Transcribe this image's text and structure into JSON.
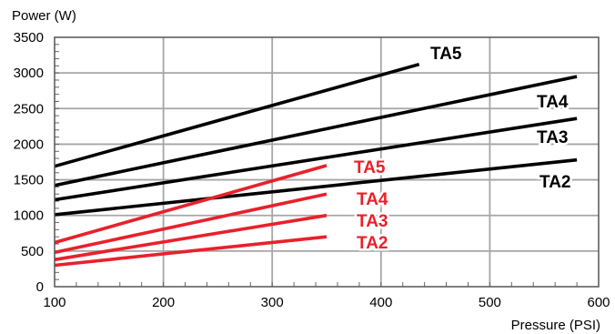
{
  "chart_data": {
    "type": "line",
    "ylabel": "Power (W)",
    "xlabel": "Pressure (PSI)",
    "xlim": [
      100,
      600
    ],
    "ylim": [
      0,
      3500
    ],
    "x_ticks": [
      100,
      200,
      300,
      400,
      500,
      600
    ],
    "y_ticks": [
      0,
      500,
      1000,
      1500,
      2000,
      2500,
      3000,
      3500
    ],
    "grid": true,
    "colors": {
      "black": "#000000",
      "red": "#e8212b",
      "grid": "#a6a6a6"
    },
    "series": [
      {
        "name": "TA5",
        "color": "#000000",
        "x": [
          100,
          435
        ],
        "y": [
          1690,
          3120
        ]
      },
      {
        "name": "TA4",
        "color": "#000000",
        "x": [
          100,
          580
        ],
        "y": [
          1420,
          2950
        ]
      },
      {
        "name": "TA3",
        "color": "#000000",
        "x": [
          100,
          580
        ],
        "y": [
          1220,
          2360
        ]
      },
      {
        "name": "TA2",
        "color": "#000000",
        "x": [
          100,
          580
        ],
        "y": [
          1010,
          1780
        ]
      },
      {
        "name": "TA5",
        "color": "#e8212b",
        "x": [
          100,
          350
        ],
        "y": [
          620,
          1700
        ]
      },
      {
        "name": "TA4",
        "color": "#e8212b",
        "x": [
          100,
          350
        ],
        "y": [
          480,
          1300
        ]
      },
      {
        "name": "TA3",
        "color": "#e8212b",
        "x": [
          100,
          350
        ],
        "y": [
          380,
          1000
        ]
      },
      {
        "name": "TA2",
        "color": "#e8212b",
        "x": [
          100,
          350
        ],
        "y": [
          300,
          700
        ]
      }
    ]
  }
}
